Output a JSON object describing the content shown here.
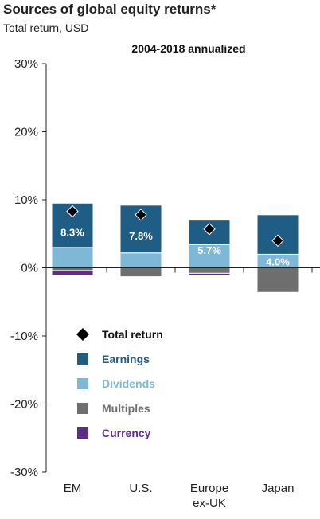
{
  "title": "Sources of global equity returns*",
  "subtitle": "Total return, USD",
  "chart_data": {
    "type": "bar",
    "stacked": true,
    "period_label": "2004-2018 annualized",
    "categories": [
      "EM",
      "U.S.",
      "Europe ex-UK",
      "Japan"
    ],
    "category_lines": [
      [
        "EM"
      ],
      [
        "U.S."
      ],
      [
        "Europe",
        "ex-UK"
      ],
      [
        "Japan"
      ]
    ],
    "ylim": [
      -30,
      30
    ],
    "yticks": [
      30,
      20,
      10,
      0,
      -10,
      -20,
      -30
    ],
    "ytick_labels": [
      "30%",
      "20%",
      "10%",
      "0%",
      "-10%",
      "-20%",
      "-30%"
    ],
    "series": [
      {
        "name": "Dividends",
        "color": "#7fb8d6",
        "values": [
          3.0,
          2.2,
          3.4,
          2.0
        ]
      },
      {
        "name": "Earnings",
        "color": "#1f5d85",
        "values": [
          6.5,
          7.0,
          3.6,
          5.8
        ]
      },
      {
        "name": "Multiples",
        "color": "#6e6e6e",
        "values": [
          -0.4,
          -1.3,
          -0.8,
          -3.6
        ]
      },
      {
        "name": "Currency",
        "color": "#5c2e8a",
        "values": [
          -0.7,
          0.0,
          -0.3,
          0.0
        ]
      }
    ],
    "total_return": {
      "name": "Total return",
      "values": [
        8.3,
        7.8,
        5.7,
        4.0
      ],
      "labels": [
        "8.3%",
        "7.8%",
        "5.7%",
        "4.0%"
      ]
    },
    "legend": {
      "placement": "bottom-left",
      "items": [
        {
          "name": "Total return",
          "marker": "diamond",
          "color": "#000000",
          "text_color": "#111111"
        },
        {
          "name": "Earnings",
          "marker": "square",
          "color": "#1f5d85",
          "text_color": "#1f5d85"
        },
        {
          "name": "Dividends",
          "marker": "square",
          "color": "#7fb8d6",
          "text_color": "#7fb8d6"
        },
        {
          "name": "Multiples",
          "marker": "square",
          "color": "#6e6e6e",
          "text_color": "#6e6e6e"
        },
        {
          "name": "Currency",
          "marker": "square",
          "color": "#5c2e8a",
          "text_color": "#5c2e8a"
        }
      ]
    }
  }
}
